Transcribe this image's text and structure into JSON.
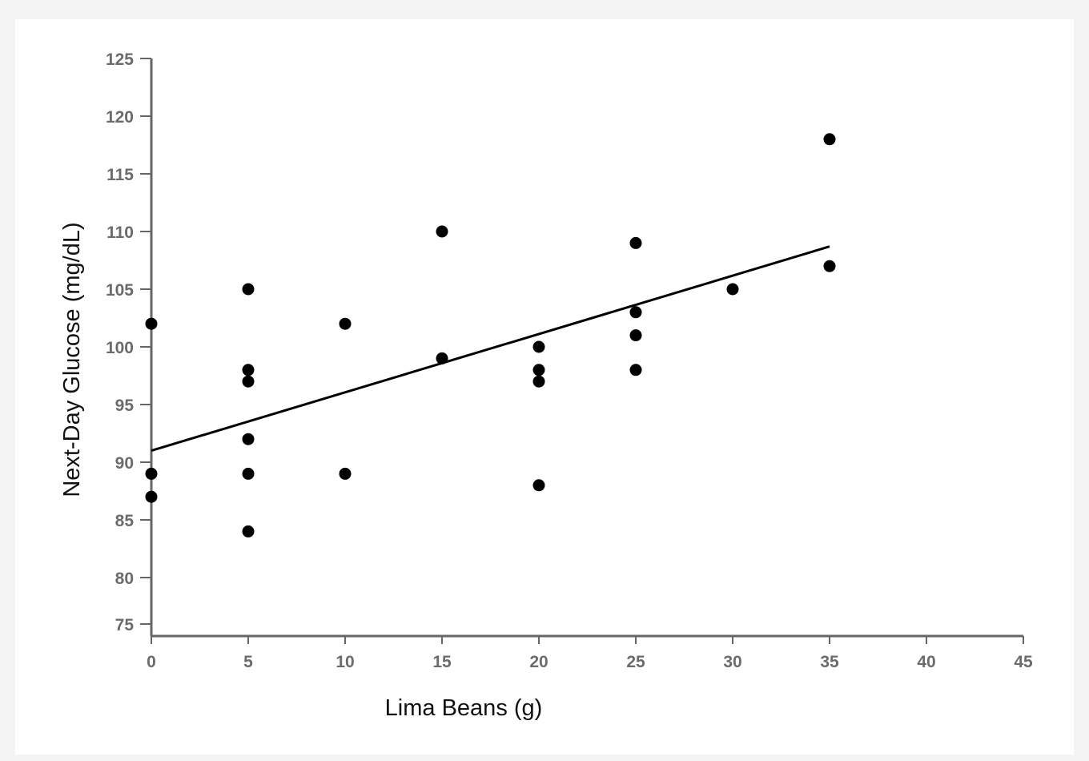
{
  "chart_data": {
    "type": "scatter",
    "title": "",
    "xlabel": "Lima Beans (g)",
    "ylabel": "Next-Day Glucose (mg/dL)",
    "xlim": [
      0,
      45
    ],
    "ylim": [
      75,
      125
    ],
    "x_ticks": [
      0,
      5,
      10,
      15,
      20,
      25,
      30,
      35,
      40,
      45
    ],
    "y_ticks": [
      75,
      80,
      85,
      90,
      95,
      100,
      105,
      110,
      115,
      120,
      125
    ],
    "grid": false,
    "legend": "none",
    "point_color": "#000000",
    "axis_color": "#666666",
    "points": [
      {
        "x": 0,
        "y": 102
      },
      {
        "x": 0,
        "y": 89
      },
      {
        "x": 0,
        "y": 87
      },
      {
        "x": 5,
        "y": 105
      },
      {
        "x": 5,
        "y": 98
      },
      {
        "x": 5,
        "y": 97
      },
      {
        "x": 5,
        "y": 92
      },
      {
        "x": 5,
        "y": 89
      },
      {
        "x": 5,
        "y": 84
      },
      {
        "x": 10,
        "y": 102
      },
      {
        "x": 10,
        "y": 89
      },
      {
        "x": 15,
        "y": 110
      },
      {
        "x": 15,
        "y": 99
      },
      {
        "x": 20,
        "y": 100
      },
      {
        "x": 20,
        "y": 98
      },
      {
        "x": 20,
        "y": 97
      },
      {
        "x": 20,
        "y": 88
      },
      {
        "x": 25,
        "y": 109
      },
      {
        "x": 25,
        "y": 103
      },
      {
        "x": 25,
        "y": 101
      },
      {
        "x": 25,
        "y": 98
      },
      {
        "x": 30,
        "y": 105
      },
      {
        "x": 35,
        "y": 118
      },
      {
        "x": 35,
        "y": 107
      }
    ],
    "trend_line": {
      "x": [
        0,
        35
      ],
      "y": [
        91,
        108.7
      ]
    }
  }
}
